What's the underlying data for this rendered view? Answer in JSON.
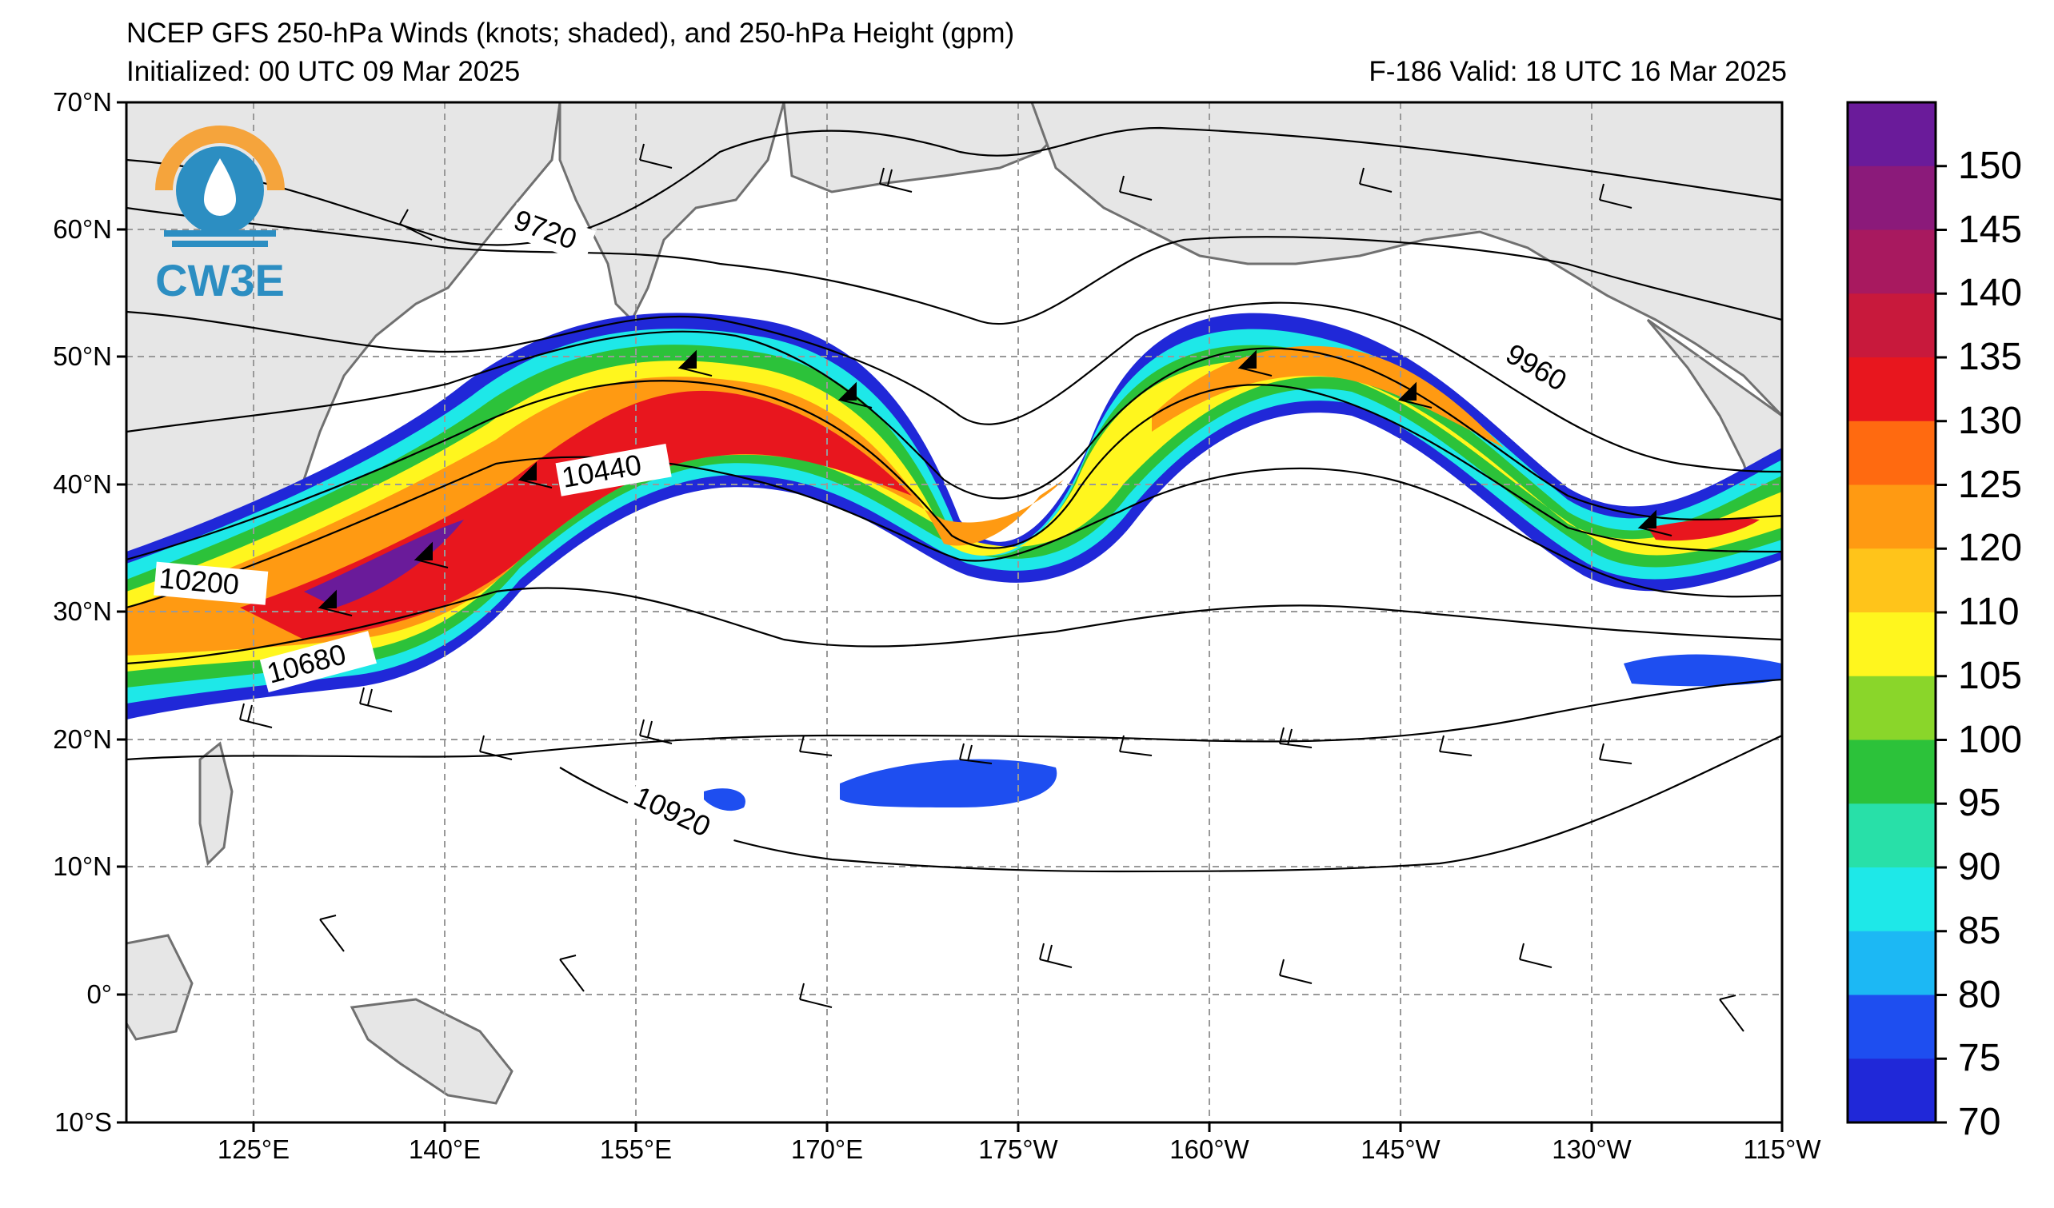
{
  "title": {
    "line1": "NCEP GFS 250-hPa Winds (knots; shaded), and 250-hPa Height (gpm)",
    "line2": "Initialized: 00 UTC 09 Mar 2025",
    "line3": "F-186  Valid: 18 UTC 16 Mar 2025"
  },
  "logo": {
    "text": "CW3E",
    "icon": "water-drop-logo-icon"
  },
  "axes": {
    "lat_labels": [
      "70°N",
      "60°N",
      "50°N",
      "40°N",
      "30°N",
      "20°N",
      "10°N",
      "0°",
      "10°S"
    ],
    "lon_labels": [
      "125°E",
      "140°E",
      "155°E",
      "170°E",
      "175°W",
      "160°W",
      "145°W",
      "130°W",
      "115°W"
    ],
    "lat_range": [
      -10,
      70
    ],
    "lon_range": [
      "115°E",
      "115°W"
    ]
  },
  "colorbar": {
    "labels": [
      "150",
      "145",
      "140",
      "135",
      "130",
      "125",
      "120",
      "110",
      "105",
      "100",
      "95",
      "90",
      "85",
      "80",
      "75",
      "70"
    ],
    "colors": [
      "#6a1b9a",
      "#8b1a7a",
      "#a8195f",
      "#c8193c",
      "#e8161e",
      "#ff6a10",
      "#ff9a12",
      "#ffc41a",
      "#fff61e",
      "#8ad62a",
      "#2cc23a",
      "#28e0a8",
      "#1ee8e8",
      "#1cb8f4",
      "#1e4ef0",
      "#2028d8"
    ]
  },
  "contour_labels": {
    "h9720": "9720",
    "h9960": "9960",
    "h10200": "10200",
    "h10440": "10440",
    "h10680": "10680",
    "h10920": "10920"
  },
  "colors": {
    "land": "#e6e6e6",
    "coast": "#707070",
    "grid": "#999999",
    "logo_orange": "#f5a43c",
    "logo_blue": "#2c8ec2"
  }
}
